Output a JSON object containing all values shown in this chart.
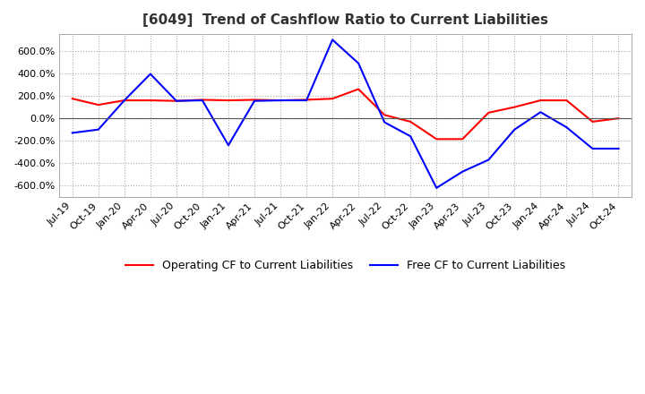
{
  "title": "[6049]  Trend of Cashflow Ratio to Current Liabilities",
  "title_fontsize": 11,
  "x_labels": [
    "Jul-19",
    "Oct-19",
    "Jan-20",
    "Apr-20",
    "Jul-20",
    "Oct-20",
    "Jan-21",
    "Apr-21",
    "Jul-21",
    "Oct-21",
    "Jan-22",
    "Apr-22",
    "Jul-22",
    "Oct-22",
    "Jan-23",
    "Apr-23",
    "Jul-23",
    "Oct-23",
    "Jan-24",
    "Apr-24",
    "Jul-24",
    "Oct-24"
  ],
  "operating_cf": [
    175,
    120,
    160,
    160,
    155,
    165,
    160,
    165,
    160,
    165,
    175,
    260,
    30,
    -30,
    -185,
    -185,
    50,
    100,
    160,
    160,
    -30,
    0
  ],
  "free_cf": [
    -130,
    -100,
    160,
    395,
    155,
    160,
    -240,
    155,
    160,
    160,
    700,
    490,
    -35,
    -160,
    -620,
    -475,
    -370,
    -100,
    55,
    -80,
    -270,
    -270
  ],
  "ylim": [
    -700,
    750
  ],
  "yticks": [
    -600,
    -400,
    -200,
    0,
    200,
    400,
    600
  ],
  "operating_color": "#ff0000",
  "free_color": "#0000ff",
  "background_color": "#ffffff",
  "grid_color": "#aaaaaa",
  "legend_operating": "Operating CF to Current Liabilities",
  "legend_free": "Free CF to Current Liabilities"
}
